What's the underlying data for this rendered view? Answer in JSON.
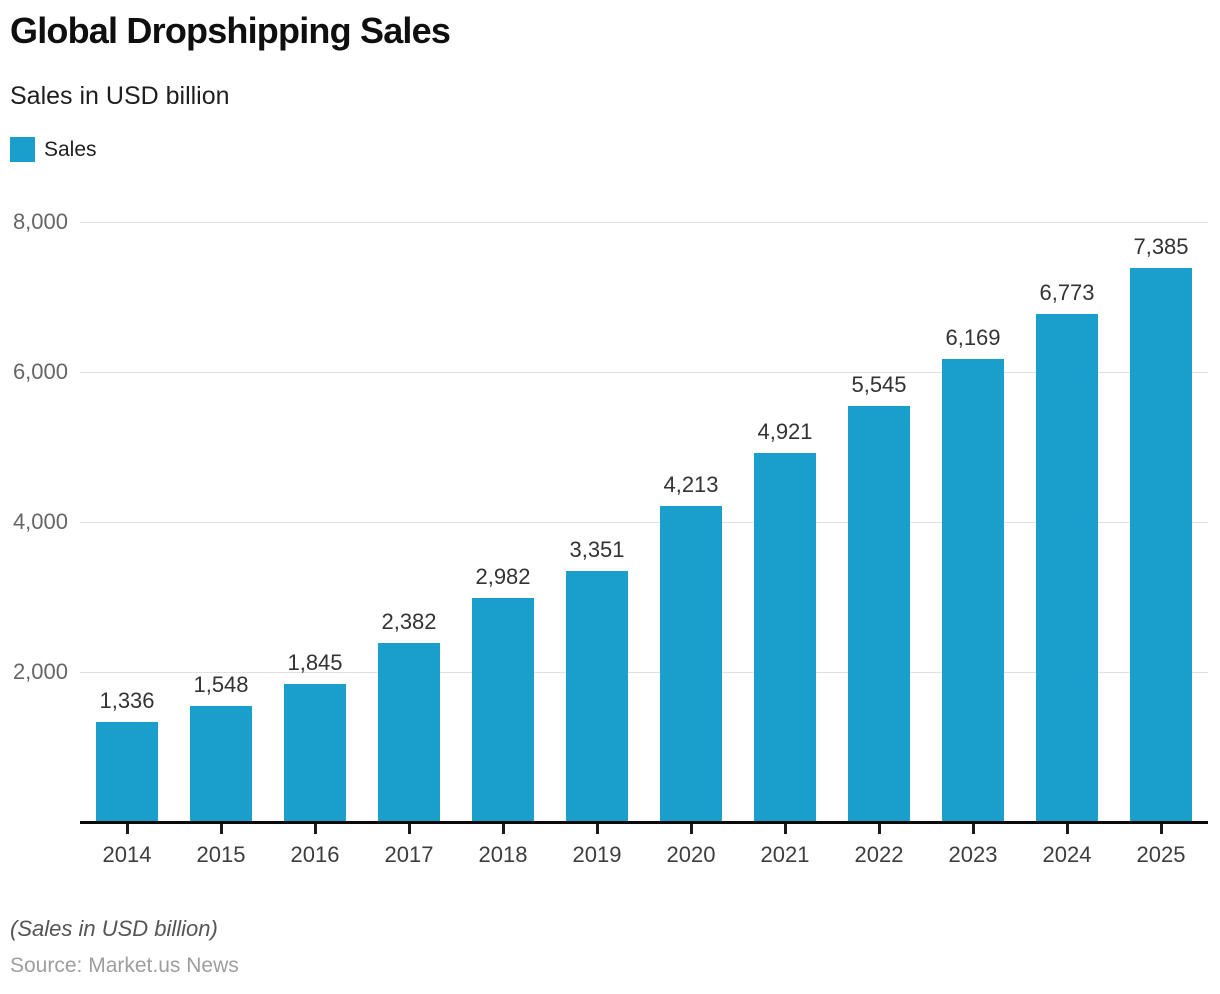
{
  "header": {
    "title": "Global Dropshipping Sales",
    "subtitle": "Sales in USD billion"
  },
  "legend": {
    "items": [
      {
        "label": "Sales",
        "color": "#1a9ecb"
      }
    ]
  },
  "chart_data": {
    "type": "bar",
    "title": "Global Dropshipping Sales",
    "subtitle": "Sales in USD billion",
    "categories": [
      "2014",
      "2015",
      "2016",
      "2017",
      "2018",
      "2019",
      "2020",
      "2021",
      "2022",
      "2023",
      "2024",
      "2025"
    ],
    "series": [
      {
        "name": "Sales",
        "values": [
          1336,
          1548,
          1845,
          2382,
          2982,
          3351,
          4213,
          4921,
          5545,
          6169,
          6773,
          7385
        ]
      }
    ],
    "values_formatted": [
      "1,336",
      "1,548",
      "1,845",
      "2,382",
      "2,982",
      "3,351",
      "4,213",
      "4,921",
      "5,545",
      "6,169",
      "6,773",
      "7,385"
    ],
    "ylim": [
      0,
      8000
    ],
    "yticks": [
      2000,
      4000,
      6000,
      8000
    ],
    "ytick_labels": [
      "2,000",
      "4,000",
      "6,000",
      "8,000"
    ],
    "grid": "horizontal",
    "legend_position": "top-left",
    "bar_color": "#1a9ecb"
  },
  "footer": {
    "note": "(Sales in USD billion)",
    "source": "Source: Market.us News"
  }
}
